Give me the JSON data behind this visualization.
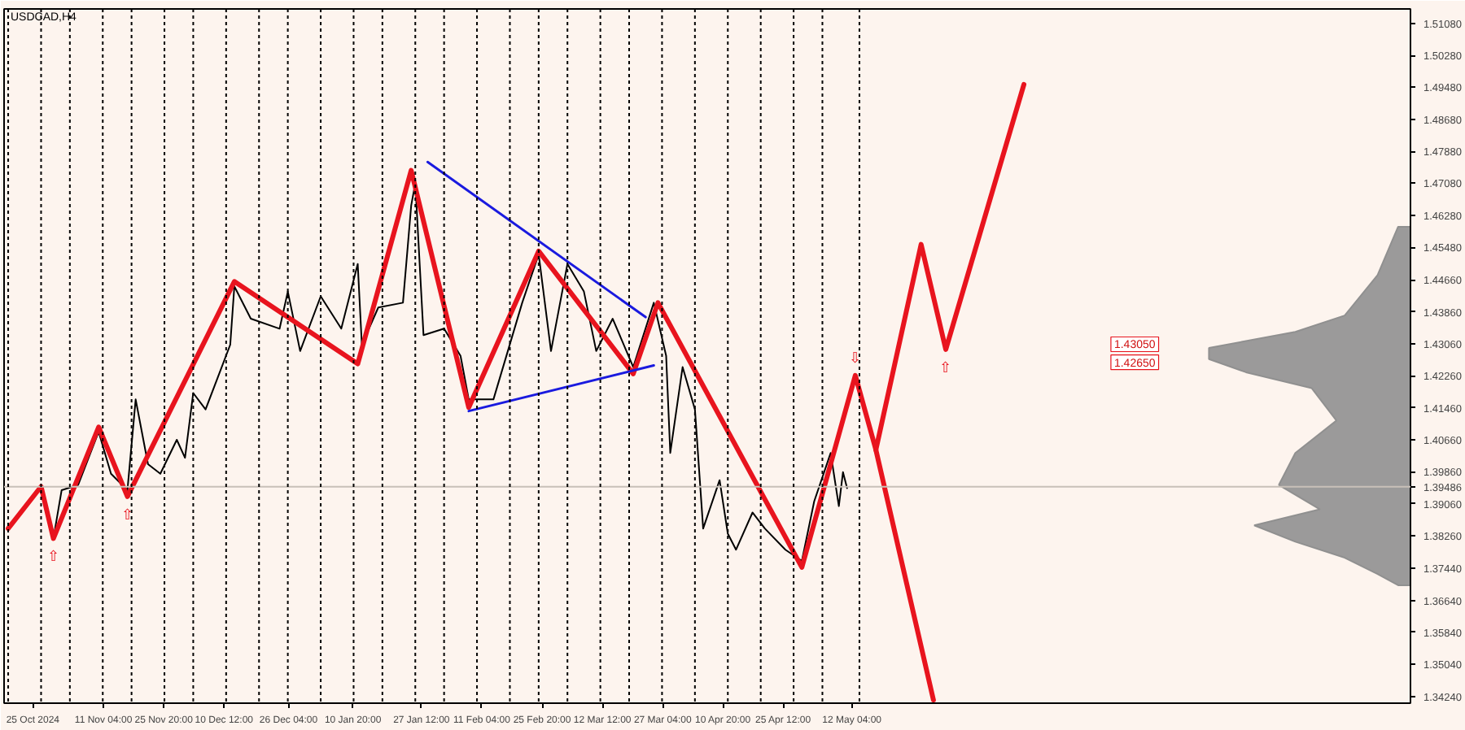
{
  "chart_data": {
    "type": "line",
    "title": "USDCAD,H4",
    "xlim": [
      "2024-10-18",
      "2025-09-25"
    ],
    "ylim": [
      1.3407,
      1.5144
    ],
    "xticks": [
      {
        "value": "2024-10-25",
        "label": "25 Oct 2024"
      },
      {
        "value": "2024-11-11T04:00",
        "label": "11 Nov 04:00"
      },
      {
        "value": "2024-11-25T20:00",
        "label": "25 Nov 20:00"
      },
      {
        "value": "2024-12-10T12:00",
        "label": "10 Dec 12:00"
      },
      {
        "value": "2024-12-26T04:00",
        "label": "26 Dec 04:00"
      },
      {
        "value": "2025-01-10T20:00",
        "label": "10 Jan 20:00"
      },
      {
        "value": "2025-01-27T12:00",
        "label": "27 Jan 12:00"
      },
      {
        "value": "2025-02-11T04:00",
        "label": "11 Feb 04:00"
      },
      {
        "value": "2025-02-25T20:00",
        "label": "25 Feb 20:00"
      },
      {
        "value": "2025-03-12T12:00",
        "label": "12 Mar 12:00"
      },
      {
        "value": "2025-03-27T04:00",
        "label": "27 Mar 04:00"
      },
      {
        "value": "2025-04-10T20:00",
        "label": "10 Apr 20:00"
      },
      {
        "value": "2025-04-25T12:00",
        "label": "25 Apr 12:00"
      },
      {
        "value": "2025-05-12T04:00",
        "label": "12 May 04:00"
      }
    ],
    "yticks": [
      {
        "value": 1.5108,
        "label": "1.51080"
      },
      {
        "value": 1.5028,
        "label": "1.50280"
      },
      {
        "value": 1.4948,
        "label": "1.49480"
      },
      {
        "value": 1.4868,
        "label": "1.48680"
      },
      {
        "value": 1.4788,
        "label": "1.47880"
      },
      {
        "value": 1.4708,
        "label": "1.47080"
      },
      {
        "value": 1.4628,
        "label": "1.46280"
      },
      {
        "value": 1.4548,
        "label": "1.45480"
      },
      {
        "value": 1.4466,
        "label": "1.44660"
      },
      {
        "value": 1.4386,
        "label": "1.43860"
      },
      {
        "value": 1.4306,
        "label": "1.43060"
      },
      {
        "value": 1.4226,
        "label": "1.42260"
      },
      {
        "value": 1.4146,
        "label": "1.41460"
      },
      {
        "value": 1.4066,
        "label": "1.40660"
      },
      {
        "value": 1.3986,
        "label": "1.39860"
      },
      {
        "value": 1.3906,
        "label": "1.39060"
      },
      {
        "value": 1.3826,
        "label": "1.38260"
      },
      {
        "value": 1.3744,
        "label": "1.37440"
      },
      {
        "value": 1.3664,
        "label": "1.36640"
      },
      {
        "value": 1.3584,
        "label": "1.35840"
      },
      {
        "value": 1.3504,
        "label": "1.35040"
      },
      {
        "value": 1.3424,
        "label": "1.34240"
      }
    ],
    "series": [
      {
        "color": "#000000",
        "x": [
          "2024-10-19",
          "2024-10-27",
          "2024-10-30",
          "2024-11-01",
          "2024-11-05",
          "2024-11-10",
          "2024-11-13",
          "2024-11-17",
          "2024-11-19",
          "2024-11-22",
          "2024-11-25",
          "2024-11-29",
          "2024-12-01",
          "2024-12-03",
          "2024-12-06",
          "2024-12-09",
          "2024-12-12",
          "2024-12-13",
          "2024-12-17",
          "2024-12-24",
          "2024-12-26",
          "2024-12-29",
          "2025-01-03",
          "2025-01-08",
          "2025-01-12",
          "2025-01-13",
          "2025-01-17",
          "2025-01-23",
          "2025-01-24",
          "2025-01-25",
          "2025-01-26",
          "2025-01-28",
          "2025-02-02",
          "2025-02-06",
          "2025-02-08",
          "2025-02-14",
          "2025-02-21",
          "2025-02-25",
          "2025-02-28",
          "2025-03-04",
          "2025-03-08",
          "2025-03-11",
          "2025-03-15",
          "2025-03-20",
          "2025-03-25",
          "2025-03-28",
          "2025-03-29",
          "2025-04-01",
          "2025-04-04",
          "2025-04-06",
          "2025-04-10",
          "2025-04-12",
          "2025-04-14",
          "2025-04-18",
          "2025-04-21",
          "2025-04-26",
          "2025-04-30",
          "2025-05-03",
          "2025-05-07",
          "2025-05-09",
          "2025-05-10",
          "2025-05-11"
        ],
        "values": [
          1.3844,
          1.3945,
          1.3819,
          1.394,
          1.3953,
          1.4086,
          1.3981,
          1.394,
          1.4167,
          1.4005,
          1.3981,
          1.4066,
          1.4021,
          1.4183,
          1.4142,
          1.4223,
          1.4304,
          1.445,
          1.4369,
          1.4344,
          1.4437,
          1.4288,
          1.4425,
          1.4344,
          1.4506,
          1.4304,
          1.4397,
          1.4409,
          1.453,
          1.4652,
          1.4708,
          1.4328,
          1.4344,
          1.4276,
          1.4167,
          1.4167,
          1.4409,
          1.453,
          1.4288,
          1.4506,
          1.4437,
          1.4288,
          1.4369,
          1.4248,
          1.4409,
          1.4276,
          1.4033,
          1.4248,
          1.4142,
          1.3844,
          1.3965,
          1.3831,
          1.3791,
          1.3884,
          1.3844,
          1.3791,
          1.3763,
          1.3912,
          1.4033,
          1.39,
          1.3985,
          1.3945
        ]
      },
      {
        "color": "#e8141e",
        "x": [
          "2024-10-19",
          "2024-10-27",
          "2024-10-30",
          "2024-11-10",
          "2024-11-17",
          "2024-12-13",
          "2025-01-12",
          "2025-01-25",
          "2025-02-08",
          "2025-02-25",
          "2025-03-20",
          "2025-03-26",
          "2025-04-30",
          "2025-05-13",
          "2025-05-18",
          "2025-06-01"
        ],
        "values": [
          1.3844,
          1.3949,
          1.3819,
          1.4098,
          1.3924,
          1.4462,
          1.4256,
          1.474,
          1.4147,
          1.4538,
          1.4231,
          1.4409,
          1.3747,
          1.4227,
          1.4041,
          1.3415
        ]
      },
      {
        "color": "#e8141e",
        "x": [
          "2025-05-18",
          "2025-05-29",
          "2025-06-04",
          "2025-06-23"
        ],
        "values": [
          1.4041,
          1.4555,
          1.4292,
          1.4955
        ]
      },
      {
        "color": "#1a1adf",
        "x": [
          "2025-01-29",
          "2025-03-23"
        ],
        "values": [
          1.4761,
          1.4373
        ]
      },
      {
        "color": "#1a1adf",
        "x": [
          "2025-02-08",
          "2025-03-25"
        ],
        "values": [
          1.4138,
          1.4252
        ]
      },
      {
        "type": "area",
        "color": "#909090",
        "x": [
          "2025-09-25",
          "2025-09-22",
          "2025-09-17",
          "2025-09-09",
          "2025-08-28",
          "2025-08-07",
          "2025-08-07",
          "2025-08-16",
          "2025-09-01",
          "2025-09-07",
          "2025-08-28",
          "2025-08-24",
          "2025-09-03",
          "2025-08-18",
          "2025-08-28",
          "2025-09-09",
          "2025-09-17",
          "2025-09-22",
          "2025-09-25"
        ],
        "values": [
          1.4599,
          1.4599,
          1.4478,
          1.4377,
          1.4336,
          1.4296,
          1.4268,
          1.4235,
          1.4195,
          1.4114,
          1.4033,
          1.3953,
          1.3892,
          1.3852,
          1.3811,
          1.3771,
          1.373,
          1.3702,
          1.3702
        ]
      }
    ],
    "ref_lines": [
      {
        "axis": "y",
        "value": 1.39486,
        "label": "1.39486",
        "color": "#c8c0b8",
        "line_style": "solid"
      },
      {
        "axis": "x",
        "value": "2024-10-19",
        "line_style": "dotted",
        "color": "#000000"
      },
      {
        "axis": "x",
        "value": "2024-10-27",
        "line_style": "dotted",
        "color": "#000000"
      },
      {
        "axis": "x",
        "value": "2024-11-03",
        "line_style": "dotted",
        "color": "#000000"
      },
      {
        "axis": "x",
        "value": "2024-11-11",
        "line_style": "dotted",
        "color": "#000000"
      },
      {
        "axis": "x",
        "value": "2024-11-18",
        "line_style": "dotted",
        "color": "#000000"
      },
      {
        "axis": "x",
        "value": "2024-11-26",
        "line_style": "dotted",
        "color": "#000000"
      },
      {
        "axis": "x",
        "value": "2024-12-03",
        "line_style": "dotted",
        "color": "#000000"
      },
      {
        "axis": "x",
        "value": "2024-12-11",
        "line_style": "dotted",
        "color": "#000000"
      },
      {
        "axis": "x",
        "value": "2024-12-19",
        "line_style": "dotted",
        "color": "#000000"
      },
      {
        "axis": "x",
        "value": "2024-12-26",
        "line_style": "dotted",
        "color": "#000000"
      },
      {
        "axis": "x",
        "value": "2025-01-03",
        "line_style": "dotted",
        "color": "#000000"
      },
      {
        "axis": "x",
        "value": "2025-01-11",
        "line_style": "dotted",
        "color": "#000000"
      },
      {
        "axis": "x",
        "value": "2025-01-18",
        "line_style": "dotted",
        "color": "#000000"
      },
      {
        "axis": "x",
        "value": "2025-01-26",
        "line_style": "dotted",
        "color": "#000000"
      },
      {
        "axis": "x",
        "value": "2025-02-02",
        "line_style": "dotted",
        "color": "#000000"
      },
      {
        "axis": "x",
        "value": "2025-02-10",
        "line_style": "dotted",
        "color": "#000000"
      },
      {
        "axis": "x",
        "value": "2025-02-18",
        "line_style": "dotted",
        "color": "#000000"
      },
      {
        "axis": "x",
        "value": "2025-02-25",
        "line_style": "dotted",
        "color": "#000000"
      },
      {
        "axis": "x",
        "value": "2025-03-04",
        "line_style": "dotted",
        "color": "#000000"
      },
      {
        "axis": "x",
        "value": "2025-03-12",
        "line_style": "dotted",
        "color": "#000000"
      },
      {
        "axis": "x",
        "value": "2025-03-19",
        "line_style": "dotted",
        "color": "#000000"
      },
      {
        "axis": "x",
        "value": "2025-03-27",
        "line_style": "dotted",
        "color": "#000000"
      },
      {
        "axis": "x",
        "value": "2025-04-04",
        "line_style": "dotted",
        "color": "#000000"
      },
      {
        "axis": "x",
        "value": "2025-04-12",
        "line_style": "dotted",
        "color": "#000000"
      },
      {
        "axis": "x",
        "value": "2025-04-20",
        "line_style": "dotted",
        "color": "#000000"
      },
      {
        "axis": "x",
        "value": "2025-04-28",
        "line_style": "dotted",
        "color": "#000000"
      },
      {
        "axis": "x",
        "value": "2025-05-05",
        "line_style": "dotted",
        "color": "#000000"
      },
      {
        "axis": "x",
        "value": "2025-05-14",
        "line_style": "dotted",
        "color": "#000000"
      }
    ],
    "annotations": [
      {
        "text": "⇧",
        "x": "2024-10-30",
        "y": 1.3819
      },
      {
        "text": "⇧",
        "x": "2024-11-17",
        "y": 1.3924
      },
      {
        "text": "⇩",
        "x": "2025-05-13",
        "y": 1.4227
      },
      {
        "text": "⇧",
        "x": "2025-06-04",
        "y": 1.4292
      },
      "1.43050",
      "1.42650"
    ]
  }
}
